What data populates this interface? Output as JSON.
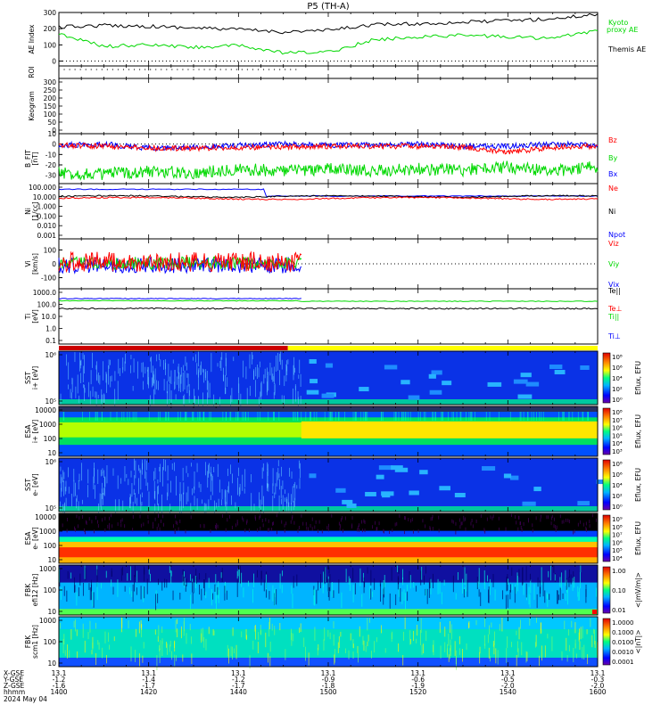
{
  "title": "P5 (TH-A)",
  "date_label": "2024 May 04",
  "colors": {
    "black": "#000000",
    "green": "#00d800",
    "red": "#ff0000",
    "blue": "#0000ff",
    "yellow": "#ffff00",
    "darkred": "#cc0000"
  },
  "ephemeris": {
    "row_labels": [
      "X-GSE",
      "Y-GSE",
      "Z-GSE",
      "hhmm",
      "2024 May 04"
    ],
    "columns": [
      {
        "x": "13.1",
        "y": "-1.2",
        "z": "-1.6",
        "t": "1400"
      },
      {
        "x": "13.1",
        "y": "-1.4",
        "z": "-1.7",
        "t": "1420"
      },
      {
        "x": "13.1",
        "y": "-1.2",
        "z": "-1.7",
        "t": "1440"
      },
      {
        "x": "13.1",
        "y": "-0.9",
        "z": "-1.8",
        "t": "1500"
      },
      {
        "x": "13.1",
        "y": "-0.6",
        "z": "-1.9",
        "t": "1520"
      },
      {
        "x": "13.1",
        "y": "-0.5",
        "z": "-2.0",
        "t": "1540"
      },
      {
        "x": "13.1",
        "y": "-0.3",
        "z": "-2.0",
        "t": "1600"
      }
    ]
  },
  "chart_data": [
    {
      "id": "ae",
      "type": "line",
      "ylabel": "AE Index",
      "ylim": [
        -30,
        300
      ],
      "yticks": [
        "300",
        "200",
        "100",
        "0"
      ],
      "x": [
        0,
        10,
        20,
        30,
        40,
        50,
        60,
        70,
        80,
        90,
        100,
        110,
        120
      ],
      "series": [
        {
          "name": "Themis AE",
          "values": [
            210,
            220,
            215,
            205,
            195,
            180,
            190,
            225,
            230,
            240,
            250,
            260,
            290
          ]
        },
        {
          "name": "Kyoto proxy AE",
          "values": [
            170,
            90,
            100,
            85,
            95,
            50,
            55,
            130,
            150,
            160,
            150,
            140,
            190
          ]
        }
      ],
      "legend": [
        {
          "text": "Kyoto",
          "color": "green"
        },
        {
          "text": "proxy AE",
          "color": "green"
        },
        {
          "text": "Themis AE",
          "color": "black"
        }
      ]
    },
    {
      "id": "roi",
      "type": "line",
      "ylabel": "ROI"
    },
    {
      "id": "keogram",
      "type": "heatmap",
      "ylabel": "Keogram",
      "ylim": [
        0,
        300
      ],
      "yticks": [
        "300",
        "250",
        "200",
        "150",
        "100",
        "50",
        "0"
      ]
    },
    {
      "id": "bfield",
      "type": "line",
      "ylabel": "B_FIT [nT]",
      "ylim": [
        -38,
        10
      ],
      "yticks": [
        "10",
        "0",
        "-10",
        "-20",
        "-30"
      ],
      "series": [
        {
          "name": "Bz",
          "color": "red",
          "values": [
            -1,
            -2,
            -4,
            -4,
            -3,
            -3,
            -2,
            -2,
            -2,
            -3,
            -8,
            -3,
            -2
          ]
        },
        {
          "name": "By",
          "color": "green",
          "values": [
            -28,
            -29,
            -26,
            -28,
            -24,
            -26,
            -24,
            -26,
            -24,
            -25,
            -22,
            -26,
            -22
          ]
        },
        {
          "name": "Bx",
          "color": "blue",
          "values": [
            -1,
            0,
            -4,
            -3,
            -1,
            0,
            -1,
            -1,
            0,
            -2,
            -2,
            0,
            -1
          ]
        }
      ]
    },
    {
      "id": "density",
      "type": "line",
      "ylabel": "Ni [1/cc]",
      "ylim_log": [
        0.001,
        100
      ],
      "yticks": [
        "100.000",
        "10.000",
        "1.000",
        "0.100",
        "0.010",
        "0.001"
      ],
      "series": [
        {
          "name": "Ne",
          "color": "red"
        },
        {
          "name": "Ni",
          "color": "black"
        },
        {
          "name": "Npot",
          "color": "blue"
        }
      ]
    },
    {
      "id": "velocity",
      "type": "line",
      "ylabel": "Vi [km/s]",
      "ylim": [
        -180,
        180
      ],
      "yticks": [
        "100",
        "0",
        "-100"
      ],
      "data_end_x": 54,
      "series": [
        {
          "name": "Viz",
          "color": "red"
        },
        {
          "name": "Viy",
          "color": "green"
        },
        {
          "name": "Vix",
          "color": "blue"
        }
      ]
    },
    {
      "id": "temperature",
      "type": "line",
      "ylabel": "Ti [eV]",
      "ylim_log": [
        0.1,
        3000
      ],
      "yticks": [
        "1000.0",
        "100.0",
        "10.0",
        "1.0",
        "0.1"
      ],
      "series": [
        {
          "name": "Te||",
          "color": "black"
        },
        {
          "name": "Te⊥",
          "color": "red"
        },
        {
          "name": "Ti||",
          "color": "green"
        },
        {
          "name": "Ti⊥",
          "color": "blue"
        }
      ]
    },
    {
      "id": "sst_i",
      "type": "heatmap",
      "ylabel": "SST i+ [eV]",
      "yticks": [
        "10⁶",
        "10⁵"
      ],
      "cbar_ticks": [
        "10⁸",
        "10⁶",
        "10⁴",
        "10²",
        "10⁰"
      ],
      "cbar_label": "Eflux, EFU"
    },
    {
      "id": "esa_i",
      "type": "heatmap",
      "ylabel": "ESA i+ [eV]",
      "yticks": [
        "10000",
        "1000",
        "100",
        "10"
      ],
      "cbar_ticks": [
        "10⁸",
        "10⁷",
        "10⁶",
        "10⁵",
        "10⁴",
        "10³"
      ],
      "cbar_label": "Eflux, EFU"
    },
    {
      "id": "sst_e",
      "type": "heatmap",
      "ylabel": "SST e- [eV]",
      "yticks": [
        "10⁶",
        "10⁵"
      ],
      "cbar_ticks": [
        "10⁸",
        "10⁶",
        "10⁴",
        "10²",
        "10⁰"
      ],
      "cbar_label": "Eflux, EFU"
    },
    {
      "id": "esa_e",
      "type": "heatmap",
      "ylabel": "ESA e- [eV]",
      "yticks": [
        "10000",
        "1000",
        "100",
        "10"
      ],
      "cbar_ticks": [
        "10⁹",
        "10⁸",
        "10⁷",
        "10⁶",
        "10⁵",
        "10⁴"
      ],
      "cbar_label": "Eflux, EFU"
    },
    {
      "id": "fbk_e",
      "type": "heatmap",
      "ylabel": "FBK efi12 [Hz]",
      "yticks": [
        "1000",
        "100",
        "10"
      ],
      "cbar_ticks": [
        "1.00",
        "0.10",
        "0.01"
      ],
      "cbar_label": "<|mV/m|>"
    },
    {
      "id": "fbk_b",
      "type": "heatmap",
      "ylabel": "FBK scm1 [Hz]",
      "yticks": [
        "1000",
        "100",
        "10"
      ],
      "cbar_ticks": [
        "1.0000",
        "0.1000",
        "0.0100",
        "0.0010",
        "0.0001"
      ],
      "cbar_label": "<|nT|>"
    }
  ]
}
